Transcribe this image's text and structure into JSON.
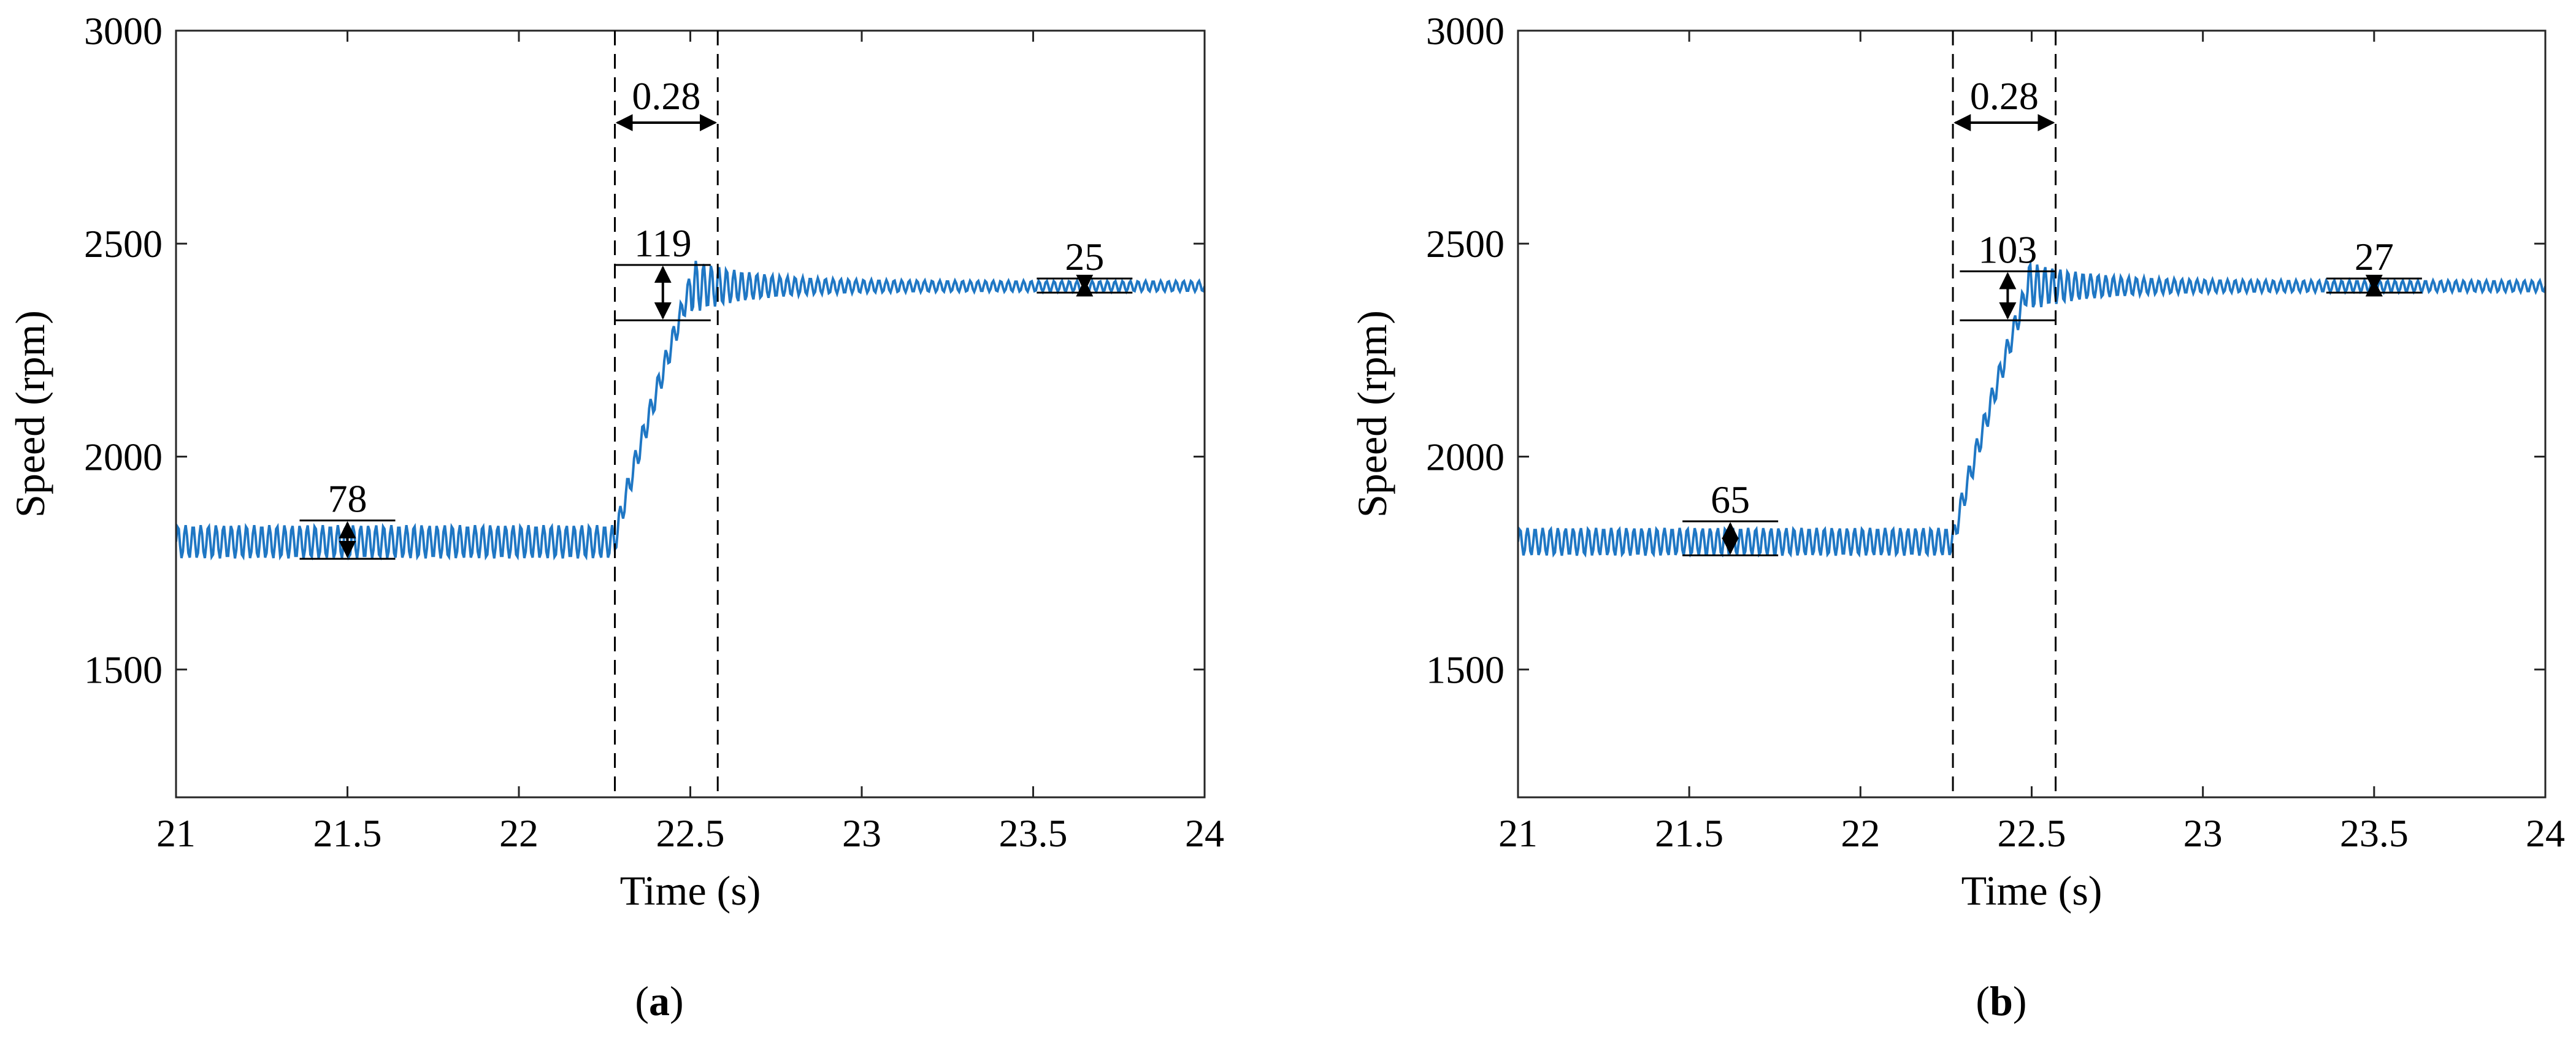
{
  "chart_data": [
    {
      "type": "line",
      "caption_letter": "a",
      "xlabel": "Time (s)",
      "ylabel": "Speed (rpm)",
      "xlim": [
        21,
        24
      ],
      "ylim": [
        1200,
        3000
      ],
      "xticks": [
        21,
        21.5,
        22,
        22.5,
        23,
        23.5,
        24
      ],
      "yticks": [
        1500,
        2000,
        2500,
        3000
      ],
      "grid": false,
      "line_color": "#1f77c4",
      "series": [
        {
          "description": "speed trace",
          "initial_speed": 1800,
          "initial_ripple_pp": 78,
          "step_start_time": 22.28,
          "final_speed": 2400,
          "final_ripple_pp": 25,
          "overshoot_band": [
            2320,
            2450
          ]
        }
      ],
      "annotations": [
        {
          "label": "0.28",
          "type": "time-interval",
          "x_start": 22.28,
          "x_end": 22.58
        },
        {
          "label": "119",
          "type": "amplitude",
          "x": 22.42,
          "y_low": 2320,
          "y_high": 2450
        },
        {
          "label": "78",
          "type": "amplitude",
          "x": 21.5,
          "y_low": 1760,
          "y_high": 1850
        },
        {
          "label": "25",
          "type": "amplitude",
          "x": 23.65,
          "y_low": 2385,
          "y_high": 2418
        }
      ]
    },
    {
      "type": "line",
      "caption_letter": "b",
      "xlabel": "Time (s)",
      "ylabel": "Speed (rpm)",
      "xlim": [
        21,
        24
      ],
      "ylim": [
        1200,
        3000
      ],
      "xticks": [
        21,
        21.5,
        22,
        22.5,
        23,
        23.5,
        24
      ],
      "yticks": [
        1500,
        2000,
        2500,
        3000
      ],
      "grid": false,
      "line_color": "#1f77c4",
      "series": [
        {
          "description": "speed trace",
          "initial_speed": 1800,
          "initial_ripple_pp": 65,
          "step_start_time": 22.27,
          "final_speed": 2400,
          "final_ripple_pp": 27,
          "overshoot_band": [
            2320,
            2435
          ]
        }
      ],
      "annotations": [
        {
          "label": "0.28",
          "type": "time-interval",
          "x_start": 22.27,
          "x_end": 22.57
        },
        {
          "label": "103",
          "type": "amplitude",
          "x": 22.43,
          "y_low": 2320,
          "y_high": 2435
        },
        {
          "label": "65",
          "type": "amplitude",
          "x": 21.62,
          "y_low": 1768,
          "y_high": 1848
        },
        {
          "label": "27",
          "type": "amplitude",
          "x": 23.5,
          "y_low": 2385,
          "y_high": 2418
        }
      ]
    }
  ]
}
